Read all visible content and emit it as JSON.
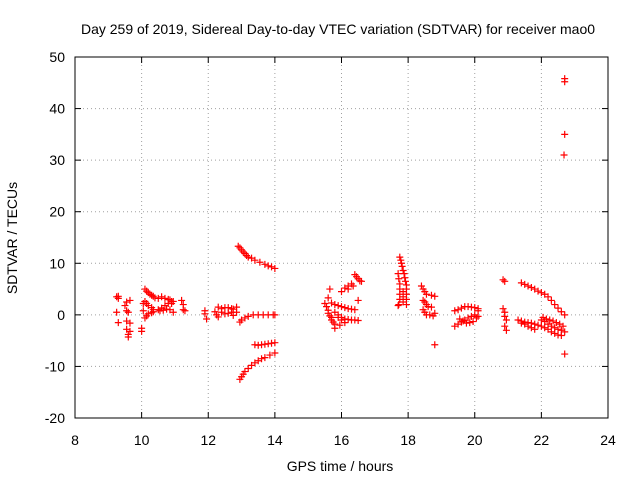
{
  "chart_data": {
    "type": "scatter",
    "title": "Day 259 of 2019, Sidereal Day-to-day VTEC variation (SDTVAR) for receiver mao0",
    "xlabel": "GPS time / hours",
    "ylabel": "SDTVAR / TECUs",
    "xlim": [
      8,
      24
    ],
    "ylim": [
      -20,
      50
    ],
    "xticks": [
      8,
      10,
      12,
      14,
      16,
      18,
      20,
      22,
      24
    ],
    "yticks": [
      -20,
      -10,
      0,
      10,
      20,
      30,
      40,
      50
    ],
    "grid": true,
    "marker": "+",
    "color": "#ff0000",
    "series": [
      {
        "name": "SDTVAR",
        "points": [
          [
            9.25,
            3.5
          ],
          [
            9.3,
            3.6
          ],
          [
            9.3,
            3.2
          ],
          [
            9.25,
            0.5
          ],
          [
            9.3,
            -1.5
          ],
          [
            9.5,
            1.8
          ],
          [
            9.55,
            2.5
          ],
          [
            9.55,
            0.8
          ],
          [
            9.55,
            -1.2
          ],
          [
            9.55,
            -2.8
          ],
          [
            9.6,
            -3.8
          ],
          [
            9.6,
            -4.3
          ],
          [
            9.65,
            -3.2
          ],
          [
            9.65,
            -1.6
          ],
          [
            9.6,
            0.5
          ],
          [
            9.65,
            2.8
          ],
          [
            10.0,
            -2.6
          ],
          [
            10.0,
            -3.2
          ],
          [
            10.05,
            0.8
          ],
          [
            10.05,
            2.2
          ],
          [
            10.1,
            5.0
          ],
          [
            10.15,
            4.6
          ],
          [
            10.2,
            4.3
          ],
          [
            10.25,
            4.0
          ],
          [
            10.3,
            3.8
          ],
          [
            10.35,
            3.6
          ],
          [
            10.4,
            3.3
          ],
          [
            10.1,
            2.6
          ],
          [
            10.15,
            2.2
          ],
          [
            10.2,
            1.8
          ],
          [
            10.3,
            1.4
          ],
          [
            10.35,
            1.0
          ],
          [
            10.1,
            -0.6
          ],
          [
            10.15,
            -0.2
          ],
          [
            10.2,
            0.2
          ],
          [
            10.3,
            0.4
          ],
          [
            10.35,
            0.6
          ],
          [
            10.5,
            3.2
          ],
          [
            10.6,
            3.5
          ],
          [
            10.7,
            3.2
          ],
          [
            10.8,
            3.0
          ],
          [
            10.85,
            2.9
          ],
          [
            10.9,
            2.6
          ],
          [
            10.95,
            2.6
          ],
          [
            10.5,
            1.0
          ],
          [
            10.6,
            1.3
          ],
          [
            10.7,
            1.8
          ],
          [
            10.8,
            2.2
          ],
          [
            10.9,
            2.2
          ],
          [
            10.55,
            0.8
          ],
          [
            10.65,
            0.9
          ],
          [
            10.75,
            1.1
          ],
          [
            10.85,
            1.0
          ],
          [
            10.95,
            0.5
          ],
          [
            11.2,
            2.8
          ],
          [
            11.25,
            2.0
          ],
          [
            11.25,
            1.0
          ],
          [
            11.3,
            0.8
          ],
          [
            11.9,
            0.8
          ],
          [
            11.9,
            0.2
          ],
          [
            11.95,
            -0.8
          ],
          [
            12.2,
            0.6
          ],
          [
            12.25,
            0.0
          ],
          [
            12.3,
            -0.4
          ],
          [
            12.4,
            1.2
          ],
          [
            12.5,
            1.4
          ],
          [
            12.6,
            1.4
          ],
          [
            12.7,
            1.2
          ],
          [
            12.75,
            1.1
          ],
          [
            12.3,
            1.5
          ],
          [
            12.4,
            0.5
          ],
          [
            12.5,
            0.2
          ],
          [
            12.6,
            0.3
          ],
          [
            12.7,
            0.5
          ],
          [
            12.75,
            -0.1
          ],
          [
            12.85,
            1.5
          ],
          [
            12.85,
            0.5
          ],
          [
            12.9,
            13.3
          ],
          [
            12.95,
            13.0
          ],
          [
            13.0,
            12.6
          ],
          [
            13.05,
            12.2
          ],
          [
            13.1,
            11.9
          ],
          [
            13.15,
            11.5
          ],
          [
            13.2,
            11.2
          ],
          [
            13.3,
            11.0
          ],
          [
            13.4,
            10.6
          ],
          [
            13.55,
            10.2
          ],
          [
            13.7,
            9.8
          ],
          [
            13.8,
            9.5
          ],
          [
            13.9,
            9.3
          ],
          [
            14.0,
            9.0
          ],
          [
            12.95,
            -1.4
          ],
          [
            13.0,
            -1.0
          ],
          [
            13.1,
            -0.6
          ],
          [
            13.2,
            -0.3
          ],
          [
            13.35,
            0.0
          ],
          [
            13.5,
            0.0
          ],
          [
            13.65,
            0.0
          ],
          [
            13.8,
            0.0
          ],
          [
            13.95,
            0.0
          ],
          [
            14.0,
            0.0
          ],
          [
            12.95,
            -12.5
          ],
          [
            13.0,
            -12.0
          ],
          [
            13.05,
            -11.5
          ],
          [
            13.1,
            -11.0
          ],
          [
            13.2,
            -10.4
          ],
          [
            13.3,
            -9.8
          ],
          [
            13.4,
            -9.3
          ],
          [
            13.5,
            -8.9
          ],
          [
            13.6,
            -8.5
          ],
          [
            13.7,
            -8.3
          ],
          [
            13.85,
            -7.8
          ],
          [
            14.0,
            -7.4
          ],
          [
            13.4,
            -5.8
          ],
          [
            13.5,
            -5.9
          ],
          [
            13.6,
            -5.8
          ],
          [
            13.7,
            -5.7
          ],
          [
            13.8,
            -5.6
          ],
          [
            13.9,
            -5.5
          ],
          [
            14.0,
            -5.4
          ],
          [
            15.5,
            2.2
          ],
          [
            15.55,
            1.6
          ],
          [
            15.6,
            0.9
          ],
          [
            15.6,
            0.3
          ],
          [
            15.65,
            -0.2
          ],
          [
            15.7,
            -0.5
          ],
          [
            15.7,
            -1.0
          ],
          [
            15.75,
            -1.4
          ],
          [
            15.8,
            -1.8
          ],
          [
            15.8,
            -2.6
          ],
          [
            15.65,
            5.0
          ],
          [
            15.6,
            3.3
          ],
          [
            15.7,
            2.3
          ],
          [
            15.8,
            2.0
          ],
          [
            15.9,
            1.8
          ],
          [
            16.0,
            1.6
          ],
          [
            16.1,
            1.4
          ],
          [
            16.2,
            1.2
          ],
          [
            16.3,
            1.1
          ],
          [
            16.4,
            1.0
          ],
          [
            15.8,
            0.5
          ],
          [
            15.9,
            0.0
          ],
          [
            16.0,
            -0.5
          ],
          [
            16.1,
            -0.8
          ],
          [
            16.2,
            -0.9
          ],
          [
            16.3,
            -1.0
          ],
          [
            16.4,
            -1.0
          ],
          [
            16.5,
            -1.1
          ],
          [
            15.9,
            -0.5
          ],
          [
            16.0,
            -1.0
          ],
          [
            16.1,
            -1.5
          ],
          [
            15.95,
            -2.0
          ],
          [
            16.0,
            4.5
          ],
          [
            16.1,
            5.2
          ],
          [
            16.2,
            5.6
          ],
          [
            16.3,
            6.0
          ],
          [
            16.35,
            5.6
          ],
          [
            16.2,
            5.0
          ],
          [
            16.4,
            7.8
          ],
          [
            16.45,
            7.4
          ],
          [
            16.5,
            7.0
          ],
          [
            16.55,
            6.6
          ],
          [
            16.6,
            6.5
          ],
          [
            16.5,
            2.8
          ],
          [
            17.75,
            11.2
          ],
          [
            17.78,
            10.6
          ],
          [
            17.8,
            10.0
          ],
          [
            17.82,
            9.4
          ],
          [
            17.85,
            8.6
          ],
          [
            17.88,
            8.0
          ],
          [
            17.9,
            7.2
          ],
          [
            17.92,
            6.5
          ],
          [
            17.95,
            5.8
          ],
          [
            17.95,
            5.0
          ],
          [
            17.95,
            4.0
          ],
          [
            17.95,
            3.0
          ],
          [
            17.95,
            2.0
          ],
          [
            17.7,
            8.0
          ],
          [
            17.72,
            7.0
          ],
          [
            17.75,
            6.0
          ],
          [
            17.75,
            5.0
          ],
          [
            17.75,
            4.0
          ],
          [
            17.75,
            3.0
          ],
          [
            17.72,
            2.0
          ],
          [
            17.7,
            1.8
          ],
          [
            17.85,
            4.5
          ],
          [
            17.85,
            3.5
          ],
          [
            17.85,
            2.5
          ],
          [
            18.4,
            5.6
          ],
          [
            18.45,
            5.0
          ],
          [
            18.5,
            4.5
          ],
          [
            18.55,
            4.0
          ],
          [
            18.7,
            3.8
          ],
          [
            18.8,
            3.6
          ],
          [
            18.45,
            2.8
          ],
          [
            18.5,
            2.5
          ],
          [
            18.55,
            2.0
          ],
          [
            18.6,
            1.6
          ],
          [
            18.7,
            1.5
          ],
          [
            18.45,
            1.0
          ],
          [
            18.5,
            0.5
          ],
          [
            18.55,
            0.0
          ],
          [
            18.65,
            0.0
          ],
          [
            18.75,
            -0.2
          ],
          [
            18.8,
            0.3
          ],
          [
            18.8,
            -5.8
          ],
          [
            19.4,
            -2.2
          ],
          [
            19.5,
            -1.8
          ],
          [
            19.6,
            -1.4
          ],
          [
            19.7,
            -1.0
          ],
          [
            19.8,
            -0.6
          ],
          [
            19.9,
            -0.3
          ],
          [
            20.0,
            0.0
          ],
          [
            19.6,
            1.3
          ],
          [
            19.7,
            1.6
          ],
          [
            19.8,
            1.6
          ],
          [
            19.9,
            1.5
          ],
          [
            20.0,
            1.4
          ],
          [
            20.1,
            1.2
          ],
          [
            20.1,
            0.8
          ],
          [
            19.55,
            -0.8
          ],
          [
            19.65,
            -1.2
          ],
          [
            19.75,
            -1.6
          ],
          [
            19.85,
            -1.5
          ],
          [
            19.95,
            -1.3
          ],
          [
            20.05,
            -0.6
          ],
          [
            20.1,
            -0.3
          ],
          [
            19.5,
            1.0
          ],
          [
            19.4,
            0.8
          ],
          [
            20.85,
            6.8
          ],
          [
            20.9,
            6.5
          ],
          [
            20.85,
            1.2
          ],
          [
            20.9,
            0.5
          ],
          [
            20.9,
            -0.3
          ],
          [
            20.95,
            -1.0
          ],
          [
            20.9,
            -2.2
          ],
          [
            20.95,
            -3.0
          ],
          [
            21.3,
            -1.0
          ],
          [
            21.4,
            -1.2
          ],
          [
            21.5,
            -1.4
          ],
          [
            21.6,
            -1.5
          ],
          [
            21.7,
            -1.6
          ],
          [
            21.8,
            -1.8
          ],
          [
            21.9,
            -2.0
          ],
          [
            21.4,
            -1.6
          ],
          [
            21.5,
            -1.8
          ],
          [
            21.6,
            -2.2
          ],
          [
            21.7,
            -2.5
          ],
          [
            21.8,
            -2.8
          ],
          [
            21.4,
            6.2
          ],
          [
            21.5,
            5.9
          ],
          [
            21.6,
            5.6
          ],
          [
            21.7,
            5.3
          ],
          [
            21.8,
            5.0
          ],
          [
            21.9,
            4.6
          ],
          [
            22.0,
            4.3
          ],
          [
            22.1,
            4.0
          ],
          [
            22.2,
            3.5
          ],
          [
            22.3,
            2.8
          ],
          [
            22.4,
            2.0
          ],
          [
            22.5,
            1.3
          ],
          [
            22.6,
            0.6
          ],
          [
            22.7,
            0.0
          ],
          [
            22.0,
            -1.0
          ],
          [
            22.1,
            -1.3
          ],
          [
            22.2,
            -1.8
          ],
          [
            22.3,
            -2.2
          ],
          [
            22.4,
            -2.5
          ],
          [
            22.5,
            -2.8
          ],
          [
            22.6,
            -3.0
          ],
          [
            22.7,
            -3.3
          ],
          [
            22.0,
            -2.2
          ],
          [
            22.1,
            -2.5
          ],
          [
            22.2,
            -2.8
          ],
          [
            22.3,
            -3.3
          ],
          [
            22.4,
            -3.6
          ],
          [
            22.5,
            -3.9
          ],
          [
            22.6,
            -4.0
          ],
          [
            22.05,
            -0.5
          ],
          [
            22.15,
            -0.8
          ],
          [
            22.25,
            -1.0
          ],
          [
            22.35,
            -1.2
          ],
          [
            22.45,
            -1.5
          ],
          [
            22.55,
            -1.8
          ],
          [
            22.65,
            -2.2
          ],
          [
            22.7,
            -7.6
          ],
          [
            22.7,
            45.8
          ],
          [
            22.7,
            45.2
          ],
          [
            22.7,
            35.0
          ],
          [
            22.68,
            31.0
          ]
        ]
      }
    ]
  }
}
